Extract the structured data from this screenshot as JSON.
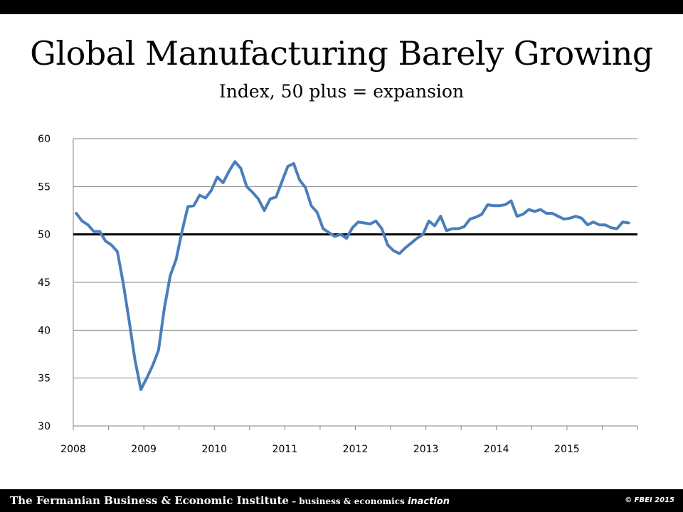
{
  "header": {
    "title": "Global Manufacturing Barely Growing",
    "subtitle": "Index, 50 plus = expansion"
  },
  "footer": {
    "institute": "The Fermanian Business & Economic Institute",
    "tagline": " – business & economics ",
    "emphasis": "inaction",
    "copyright": "© FBEI 2015"
  },
  "colors": {
    "series": "#4a7ebb",
    "reference_line": "#000000",
    "axis": "#868686"
  },
  "chart_data": {
    "type": "line",
    "title": "Global Manufacturing Barely Growing",
    "subtitle": "Index, 50 plus = expansion",
    "xlabel": "",
    "ylabel": "",
    "ylim": [
      30,
      60
    ],
    "yticks": [
      30,
      35,
      40,
      45,
      50,
      55,
      60
    ],
    "xlim": [
      "2008-01",
      "2015-12"
    ],
    "xticks": [
      "2008",
      "2009",
      "2010",
      "2011",
      "2012",
      "2013",
      "2014",
      "2015"
    ],
    "grid": "horizontal",
    "reference_line": 50,
    "frequency": "monthly",
    "start": "2008-01",
    "series": [
      {
        "values": [
          52.2,
          51.4,
          51.0,
          50.3,
          50.3,
          49.3,
          48.9,
          48.2,
          44.9,
          41.0,
          36.9,
          33.8,
          35.0,
          36.3,
          37.9,
          42.3,
          45.7,
          47.4,
          50.3,
          52.9,
          53.0,
          54.1,
          53.8,
          54.6,
          56.0,
          55.4,
          56.6,
          57.6,
          56.9,
          55.0,
          54.4,
          53.7,
          52.5,
          53.7,
          53.9,
          55.5,
          57.1,
          57.4,
          55.7,
          54.9,
          53.0,
          52.3,
          50.6,
          50.2,
          49.8,
          50.0,
          49.6,
          50.7,
          51.3,
          51.2,
          51.1,
          51.4,
          50.6,
          48.9,
          48.3,
          48.0,
          48.6,
          49.1,
          49.6,
          50.0,
          51.4,
          50.9,
          51.9,
          50.4,
          50.6,
          50.6,
          50.8,
          51.6,
          51.8,
          52.1,
          53.1,
          53.0,
          53.0,
          53.1,
          53.5,
          51.9,
          52.1,
          52.6,
          52.4,
          52.6,
          52.2,
          52.2,
          51.9,
          51.6,
          51.7,
          51.9,
          51.7,
          51.0,
          51.3,
          51.0,
          51.0,
          50.7,
          50.6,
          51.3,
          51.2
        ]
      }
    ]
  }
}
